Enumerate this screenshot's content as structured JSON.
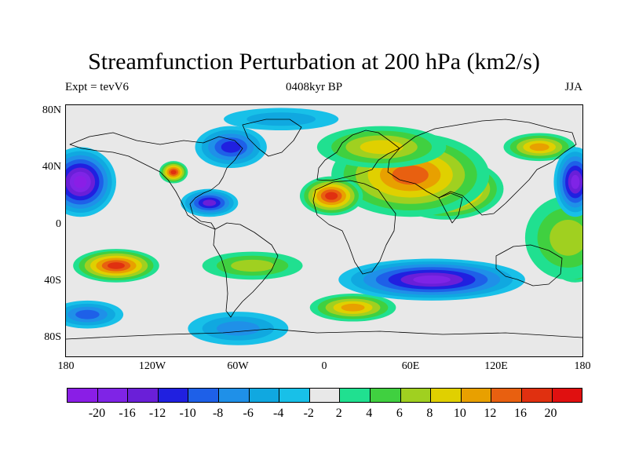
{
  "title": "Streamfunction Perturbation at 200 hPa (km2/s)",
  "subtitle_left": "Expt = tevV6",
  "subtitle_center": "0408kyr BP",
  "subtitle_right": "JJA",
  "map": {
    "projection": "cylindrical equidistant",
    "lon_range": [
      -180,
      180
    ],
    "lat_range": [
      -90,
      90
    ],
    "background_color": "#e8e8e8",
    "coastline_color": "#000000",
    "lat_ticks": [
      {
        "value": 80,
        "label": "80N"
      },
      {
        "value": 40,
        "label": "40N"
      },
      {
        "value": 0,
        "label": "0"
      },
      {
        "value": -40,
        "label": "40S"
      },
      {
        "value": -80,
        "label": "80S"
      }
    ],
    "lon_ticks": [
      {
        "value": -180,
        "label": "180"
      },
      {
        "value": -120,
        "label": "120W"
      },
      {
        "value": -60,
        "label": "60W"
      },
      {
        "value": 0,
        "label": "0"
      },
      {
        "value": 60,
        "label": "60E"
      },
      {
        "value": 120,
        "label": "120E"
      },
      {
        "value": 180,
        "label": "180"
      }
    ]
  },
  "colorbar": {
    "colors": [
      "#8a1ee6",
      "#7f24e6",
      "#6a1fd8",
      "#2020e0",
      "#1e60e8",
      "#1f90e8",
      "#10a8e0",
      "#18c0e8",
      "#e8e8e8",
      "#20e090",
      "#40d040",
      "#a0d020",
      "#e0d000",
      "#e8a000",
      "#e86010",
      "#e03010",
      "#e01010"
    ],
    "labels": [
      "-20",
      "-16",
      "-12",
      "-10",
      "-8",
      "-6",
      "-4",
      "-2",
      "2",
      "4",
      "6",
      "8",
      "10",
      "12",
      "16",
      "20"
    ]
  },
  "field": [
    {
      "lon": 85,
      "lat": 30,
      "rx": 40,
      "ry": 22,
      "value": 20
    },
    {
      "lon": 60,
      "lat": 40,
      "rx": 55,
      "ry": 30,
      "value": 12
    },
    {
      "lon": 40,
      "lat": 60,
      "rx": 45,
      "ry": 15,
      "value": 8
    },
    {
      "lon": 5,
      "lat": 25,
      "rx": 22,
      "ry": 14,
      "value": 16
    },
    {
      "lon": -105,
      "lat": 42,
      "rx": 10,
      "ry": 8,
      "value": 16
    },
    {
      "lon": -145,
      "lat": -25,
      "rx": 30,
      "ry": 12,
      "value": 16
    },
    {
      "lon": 175,
      "lat": -25,
      "rx": 15,
      "ry": 12,
      "value": 10
    },
    {
      "lon": 20,
      "lat": -55,
      "rx": 30,
      "ry": 10,
      "value": 10
    },
    {
      "lon": 150,
      "lat": 60,
      "rx": 25,
      "ry": 10,
      "value": 10
    },
    {
      "lon": -50,
      "lat": -25,
      "rx": 35,
      "ry": 10,
      "value": 6
    },
    {
      "lon": 170,
      "lat": -5,
      "rx": 30,
      "ry": 30,
      "value": 6
    },
    {
      "lon": -170,
      "lat": 35,
      "rx": 25,
      "ry": 25,
      "value": -20
    },
    {
      "lon": 175,
      "lat": 35,
      "rx": 15,
      "ry": 25,
      "value": -16
    },
    {
      "lon": -80,
      "lat": 20,
      "rx": 20,
      "ry": 10,
      "value": -12
    },
    {
      "lon": -65,
      "lat": 60,
      "rx": 25,
      "ry": 15,
      "value": -10
    },
    {
      "lon": 75,
      "lat": -35,
      "rx": 65,
      "ry": 15,
      "value": -16
    },
    {
      "lon": -165,
      "lat": -60,
      "rx": 25,
      "ry": 10,
      "value": -8
    },
    {
      "lon": -60,
      "lat": -70,
      "rx": 35,
      "ry": 12,
      "value": -6
    },
    {
      "lon": -30,
      "lat": 80,
      "rx": 40,
      "ry": 8,
      "value": -4
    }
  ]
}
